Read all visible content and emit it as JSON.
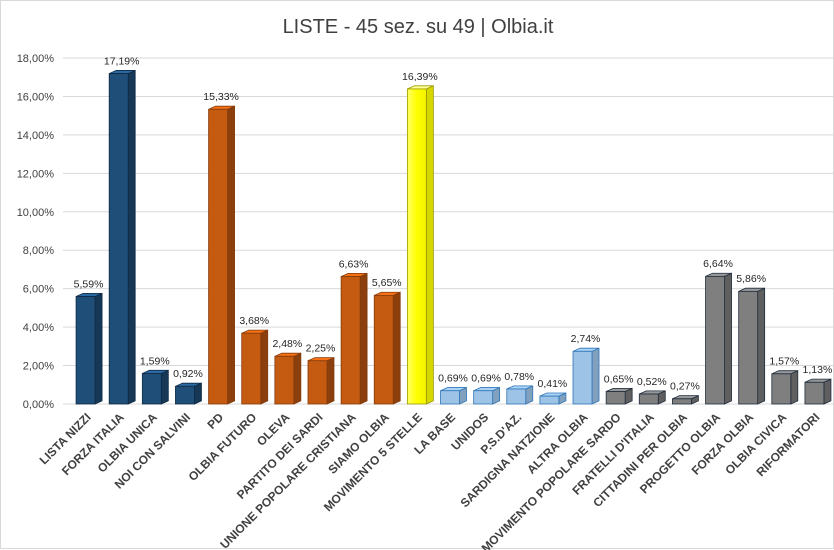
{
  "chart_data": {
    "type": "bar",
    "title": "LISTE - 45 sez. su 49 | Olbia.it",
    "xlabel": "",
    "ylabel": "",
    "ylim": [
      0,
      18
    ],
    "y_ticks": [
      "0,00%",
      "2,00%",
      "4,00%",
      "6,00%",
      "8,00%",
      "10,00%",
      "12,00%",
      "14,00%",
      "16,00%",
      "18,00%"
    ],
    "grid": true,
    "legend": "none",
    "categories": [
      "LISTA NIZZI",
      "FORZA ITALIA",
      "OLBIA UNICA",
      "NOI CON SALVINI",
      "PD",
      "OLBIA FUTURO",
      "OLEVA",
      "PARTITO DEI SARDI",
      "UNIONE POPOLARE CRISTIANA",
      "SIAMO OLBIA",
      "MOVIMENTO 5 STELLE",
      "LA BASE",
      "UNIDOS",
      "P.S.D'AZ.",
      "SARDIGNA NATZIONE",
      "ALTRA OLBIA",
      "MOVIMENTO POPOLARE SARDO",
      "FRATELLI D'ITALIA",
      "CITTADINI PER OLBIA",
      "PROGETTO OLBIA",
      "FORZA OLBIA",
      "OLBIA CIVICA",
      "RIFORMATORI"
    ],
    "values": [
      5.59,
      17.19,
      1.59,
      0.92,
      15.33,
      3.68,
      2.48,
      2.25,
      6.63,
      5.65,
      16.39,
      0.69,
      0.69,
      0.78,
      0.41,
      2.74,
      0.65,
      0.52,
      0.27,
      6.64,
      5.86,
      1.57,
      1.13
    ],
    "value_labels": [
      "5,59%",
      "17,19%",
      "1,59%",
      "0,92%",
      "15,33%",
      "3,68%",
      "2,48%",
      "2,25%",
      "6,63%",
      "5,65%",
      "16,39%",
      "0,69%",
      "0,69%",
      "0,78%",
      "0,41%",
      "2,74%",
      "0,65%",
      "0,52%",
      "0,27%",
      "6,64%",
      "5,86%",
      "1,57%",
      "1,13%"
    ],
    "colors": {
      "blue": "#1f4e79",
      "orange": "#c55a11",
      "yellow": "#ffff00",
      "light_blue": "#9dc3e6",
      "gray": "#7f7f7f",
      "grid": "#d9d9d9",
      "axis_text": "#404040"
    },
    "bar_colors": [
      "blue",
      "blue",
      "blue",
      "blue",
      "orange",
      "orange",
      "orange",
      "orange",
      "orange",
      "orange",
      "yellow",
      "light_blue",
      "light_blue",
      "light_blue",
      "light_blue",
      "light_blue",
      "gray",
      "gray",
      "gray",
      "gray",
      "gray",
      "gray",
      "gray"
    ]
  }
}
